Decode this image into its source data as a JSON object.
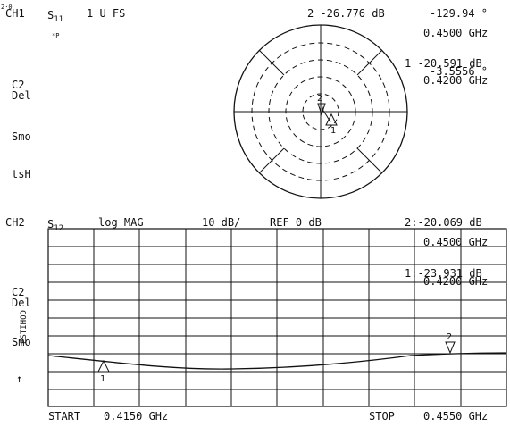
{
  "ch1": {
    "label": "CH1",
    "param": "S",
    "param_sub": "11",
    "scale": "1 U FS",
    "marker2": "2 -26.776 dB",
    "marker2_phase": "-129.94 °",
    "marker2_freq": "0.4500 GHz",
    "marker1": "1 -20.591 dB",
    "marker1_phase": "-3.5556 °",
    "marker1_freq": "0.4200 GHz",
    "side_c2": "C2",
    "side_del": "Del",
    "side_smo": "Smo",
    "side_tsh": "tsH",
    "corner_tiny": "2·0",
    "star_mark": "*P",
    "smith_m1": "1",
    "smith_m2": "2"
  },
  "ch2": {
    "label": "CH2",
    "param": "S",
    "param_sub": "12",
    "format": "log MAG",
    "scale": "10 dB/",
    "ref": "REF 0 dB",
    "marker2": "2:-20.069 dB",
    "marker2_freq": "0.4500 GHz",
    "marker1": "1:-23.931 dB",
    "marker1_freq": "0.4200 GHz",
    "side_c2": "C2",
    "side_del": "Del",
    "side_smo": "Smo",
    "side_arrow": "↑",
    "vertical_stamp": "ESTIHOD",
    "trace_m1": "1",
    "trace_m2": "2",
    "start_label": "START",
    "start_value": "0.4150 GHz",
    "stop_label": "STOP",
    "stop_value": "0.4550 GHz"
  }
}
